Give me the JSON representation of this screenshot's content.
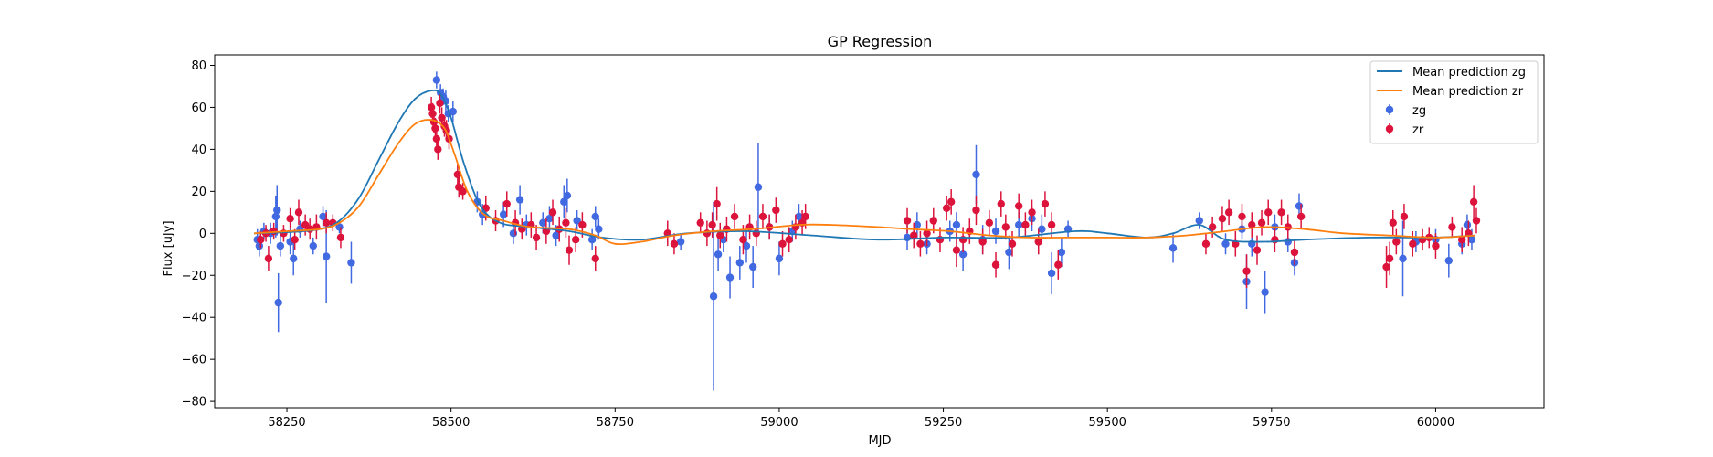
{
  "chart_data": {
    "type": "scatter",
    "title": "GP Regression",
    "xlabel": "MJD",
    "ylabel": "Flux [uJy]",
    "xlim": [
      58140,
      60165
    ],
    "ylim": [
      -83,
      85
    ],
    "xticks": [
      58250,
      58500,
      58750,
      59000,
      59250,
      59500,
      59750,
      60000
    ],
    "yticks": [
      -80,
      -60,
      -40,
      -20,
      0,
      20,
      40,
      60,
      80
    ],
    "grid": false,
    "legend_position": "top-right",
    "legend": [
      "Mean prediction zg",
      "Mean prediction zr",
      "zg",
      "zr"
    ],
    "colors": {
      "mean_zg": "#1f77b4",
      "mean_zr": "#ff7f0e",
      "zg": "#4169e1",
      "zr": "#dc143c"
    },
    "series": [
      {
        "name": "Mean prediction zg",
        "kind": "line",
        "x": [
          58200,
          58250,
          58300,
          58330,
          58360,
          58390,
          58420,
          58445,
          58470,
          58485,
          58500,
          58520,
          58545,
          58575,
          58620,
          58680,
          58730,
          58790,
          58860,
          58950,
          59050,
          59150,
          59250,
          59350,
          59450,
          59500,
          59560,
          59600,
          59640,
          59680,
          59740,
          59800,
          59900,
          60000,
          60060
        ],
        "y": [
          0,
          0.5,
          2,
          6,
          17,
          35,
          53,
          64,
          68,
          66,
          55,
          33,
          13,
          5,
          3,
          1,
          -2,
          -3,
          0,
          1,
          -1,
          -3,
          -2,
          -2,
          1,
          0,
          -2,
          0,
          4,
          -3,
          -4,
          -3,
          -2,
          -2,
          -1
        ]
      },
      {
        "name": "Mean prediction zr",
        "kind": "line",
        "x": [
          58200,
          58250,
          58300,
          58330,
          58360,
          58390,
          58420,
          58445,
          58470,
          58490,
          58505,
          58525,
          58550,
          58580,
          58620,
          58680,
          58720,
          58750,
          58790,
          58840,
          58900,
          58960,
          59030,
          59080,
          59150,
          59200,
          59260,
          59320,
          59380,
          59440,
          59500,
          59560,
          59620,
          59680,
          59740,
          59800,
          59860,
          59930,
          60000,
          60060
        ],
        "y": [
          0,
          1,
          2,
          5,
          13,
          28,
          43,
          52,
          54,
          50,
          38,
          20,
          9,
          6,
          3,
          2,
          -1,
          -5,
          -4,
          -1,
          1,
          2,
          4,
          4,
          3,
          2,
          1,
          -1,
          -2,
          -2,
          -2,
          -2,
          -1,
          1,
          3,
          2,
          0,
          -1,
          -2,
          -1
        ]
      },
      {
        "name": "zg",
        "kind": "errorbar",
        "points": [
          [
            58205,
            -3,
            5
          ],
          [
            58208,
            -6,
            5
          ],
          [
            58215,
            1,
            4
          ],
          [
            58225,
            0,
            5
          ],
          [
            58233,
            8,
            10
          ],
          [
            58235,
            11,
            12
          ],
          [
            58237,
            -33,
            14
          ],
          [
            58240,
            -6,
            5
          ],
          [
            58255,
            -4,
            6
          ],
          [
            58260,
            -12,
            8
          ],
          [
            58270,
            2,
            4
          ],
          [
            58290,
            -6,
            4
          ],
          [
            58305,
            8,
            5
          ],
          [
            58310,
            -11,
            22
          ],
          [
            58330,
            3,
            3
          ],
          [
            58348,
            -14,
            10
          ],
          [
            58478,
            73,
            4
          ],
          [
            58484,
            67,
            4
          ],
          [
            58488,
            65,
            4
          ],
          [
            58492,
            63,
            5
          ],
          [
            58496,
            57,
            4
          ],
          [
            58503,
            58,
            5
          ],
          [
            58540,
            15,
            5
          ],
          [
            58548,
            9,
            5
          ],
          [
            58580,
            9,
            6
          ],
          [
            58595,
            0,
            5
          ],
          [
            58605,
            16,
            7
          ],
          [
            58615,
            4,
            5
          ],
          [
            58640,
            5,
            5
          ],
          [
            58650,
            7,
            6
          ],
          [
            58660,
            -1,
            5
          ],
          [
            58672,
            15,
            8
          ],
          [
            58677,
            18,
            8
          ],
          [
            58692,
            6,
            5
          ],
          [
            58715,
            -3,
            5
          ],
          [
            58720,
            8,
            5
          ],
          [
            58725,
            2,
            5
          ],
          [
            58850,
            -4,
            4
          ],
          [
            58900,
            -30,
            45
          ],
          [
            58907,
            -10,
            8
          ],
          [
            58915,
            -3,
            6
          ],
          [
            58925,
            -21,
            10
          ],
          [
            58940,
            -14,
            8
          ],
          [
            58950,
            -6,
            8
          ],
          [
            58960,
            -16,
            10
          ],
          [
            58968,
            22,
            21
          ],
          [
            58985,
            3,
            6
          ],
          [
            59000,
            -12,
            8
          ],
          [
            59020,
            1,
            5
          ],
          [
            59030,
            8,
            6
          ],
          [
            59195,
            -2,
            6
          ],
          [
            59210,
            4,
            6
          ],
          [
            59225,
            -5,
            5
          ],
          [
            59260,
            1,
            5
          ],
          [
            59270,
            4,
            6
          ],
          [
            59280,
            -10,
            8
          ],
          [
            59300,
            28,
            14
          ],
          [
            59310,
            -3,
            7
          ],
          [
            59330,
            1,
            6
          ],
          [
            59350,
            -9,
            8
          ],
          [
            59365,
            4,
            6
          ],
          [
            59385,
            7,
            6
          ],
          [
            59400,
            2,
            7
          ],
          [
            59415,
            -19,
            10
          ],
          [
            59430,
            -9,
            7
          ],
          [
            59440,
            2,
            4
          ],
          [
            59600,
            -7,
            7
          ],
          [
            59640,
            6,
            4
          ],
          [
            59680,
            -5,
            5
          ],
          [
            59705,
            2,
            5
          ],
          [
            59712,
            -23,
            13
          ],
          [
            59720,
            -5,
            6
          ],
          [
            59740,
            -28,
            10
          ],
          [
            59755,
            3,
            6
          ],
          [
            59775,
            -4,
            5
          ],
          [
            59785,
            -14,
            6
          ],
          [
            59792,
            13,
            6
          ],
          [
            59950,
            -12,
            18
          ],
          [
            59970,
            -4,
            5
          ],
          [
            60000,
            -3,
            5
          ],
          [
            60020,
            -13,
            8
          ],
          [
            60040,
            -5,
            5
          ],
          [
            60048,
            4,
            5
          ],
          [
            60055,
            -3,
            5
          ]
        ]
      },
      {
        "name": "zr",
        "kind": "errorbar",
        "points": [
          [
            58210,
            -3,
            4
          ],
          [
            58218,
            0,
            4
          ],
          [
            58222,
            -12,
            6
          ],
          [
            58230,
            1,
            4
          ],
          [
            58245,
            0,
            4
          ],
          [
            58255,
            7,
            5
          ],
          [
            58262,
            -3,
            5
          ],
          [
            58268,
            10,
            6
          ],
          [
            58278,
            4,
            5
          ],
          [
            58285,
            2,
            5
          ],
          [
            58295,
            3,
            6
          ],
          [
            58310,
            5,
            5
          ],
          [
            58320,
            5,
            4
          ],
          [
            58332,
            -2,
            5
          ],
          [
            58470,
            60,
            5
          ],
          [
            58472,
            57,
            5
          ],
          [
            58474,
            53,
            5
          ],
          [
            58476,
            50,
            5
          ],
          [
            58478,
            45,
            5
          ],
          [
            58480,
            40,
            5
          ],
          [
            58483,
            62,
            5
          ],
          [
            58486,
            55,
            5
          ],
          [
            58490,
            51,
            5
          ],
          [
            58493,
            49,
            5
          ],
          [
            58497,
            45,
            5
          ],
          [
            58510,
            28,
            5
          ],
          [
            58512,
            22,
            5
          ],
          [
            58518,
            20,
            4
          ],
          [
            58553,
            12,
            6
          ],
          [
            58568,
            6,
            5
          ],
          [
            58585,
            14,
            6
          ],
          [
            58598,
            5,
            6
          ],
          [
            58608,
            2,
            5
          ],
          [
            58622,
            4,
            6
          ],
          [
            58630,
            -2,
            6
          ],
          [
            58645,
            1,
            6
          ],
          [
            58655,
            10,
            6
          ],
          [
            58665,
            2,
            6
          ],
          [
            58675,
            5,
            7
          ],
          [
            58680,
            -8,
            7
          ],
          [
            58690,
            -3,
            6
          ],
          [
            58700,
            4,
            6
          ],
          [
            58720,
            -12,
            6
          ],
          [
            58830,
            0,
            6
          ],
          [
            58840,
            -5,
            5
          ],
          [
            58880,
            5,
            5
          ],
          [
            58890,
            0,
            6
          ],
          [
            58898,
            4,
            6
          ],
          [
            58905,
            14,
            8
          ],
          [
            58910,
            -1,
            6
          ],
          [
            58920,
            2,
            6
          ],
          [
            58932,
            8,
            6
          ],
          [
            58945,
            -3,
            7
          ],
          [
            58955,
            3,
            6
          ],
          [
            58965,
            0,
            6
          ],
          [
            58975,
            8,
            6
          ],
          [
            58985,
            3,
            6
          ],
          [
            58995,
            11,
            6
          ],
          [
            59005,
            -5,
            6
          ],
          [
            59015,
            -3,
            6
          ],
          [
            59025,
            3,
            6
          ],
          [
            59035,
            5,
            6
          ],
          [
            59040,
            8,
            6
          ],
          [
            59195,
            6,
            6
          ],
          [
            59205,
            -1,
            6
          ],
          [
            59215,
            -5,
            6
          ],
          [
            59225,
            0,
            6
          ],
          [
            59235,
            6,
            6
          ],
          [
            59245,
            -3,
            6
          ],
          [
            59255,
            12,
            6
          ],
          [
            59262,
            15,
            6
          ],
          [
            59270,
            -8,
            8
          ],
          [
            59280,
            -3,
            6
          ],
          [
            59290,
            1,
            6
          ],
          [
            59300,
            11,
            7
          ],
          [
            59310,
            -4,
            6
          ],
          [
            59320,
            5,
            6
          ],
          [
            59330,
            -15,
            6
          ],
          [
            59338,
            14,
            6
          ],
          [
            59345,
            3,
            6
          ],
          [
            59355,
            -5,
            6
          ],
          [
            59365,
            13,
            6
          ],
          [
            59375,
            4,
            6
          ],
          [
            59385,
            10,
            6
          ],
          [
            59395,
            -4,
            6
          ],
          [
            59405,
            14,
            6
          ],
          [
            59415,
            4,
            6
          ],
          [
            59425,
            -15,
            7
          ],
          [
            59650,
            -5,
            5
          ],
          [
            59660,
            3,
            5
          ],
          [
            59675,
            7,
            6
          ],
          [
            59685,
            10,
            6
          ],
          [
            59695,
            -5,
            6
          ],
          [
            59705,
            8,
            6
          ],
          [
            59712,
            -18,
            8
          ],
          [
            59720,
            4,
            6
          ],
          [
            59728,
            -8,
            7
          ],
          [
            59735,
            5,
            6
          ],
          [
            59745,
            10,
            6
          ],
          [
            59755,
            -3,
            6
          ],
          [
            59765,
            10,
            6
          ],
          [
            59775,
            3,
            6
          ],
          [
            59785,
            -9,
            6
          ],
          [
            59795,
            8,
            6
          ],
          [
            59925,
            -16,
            10
          ],
          [
            59930,
            -12,
            8
          ],
          [
            59935,
            5,
            6
          ],
          [
            59940,
            -4,
            6
          ],
          [
            59952,
            8,
            6
          ],
          [
            59965,
            -5,
            6
          ],
          [
            59980,
            -3,
            5
          ],
          [
            59990,
            -2,
            5
          ],
          [
            60000,
            -6,
            6
          ],
          [
            60025,
            3,
            5
          ],
          [
            60040,
            -3,
            6
          ],
          [
            60050,
            0,
            6
          ],
          [
            60058,
            15,
            8
          ],
          [
            60062,
            6,
            6
          ]
        ]
      }
    ]
  }
}
